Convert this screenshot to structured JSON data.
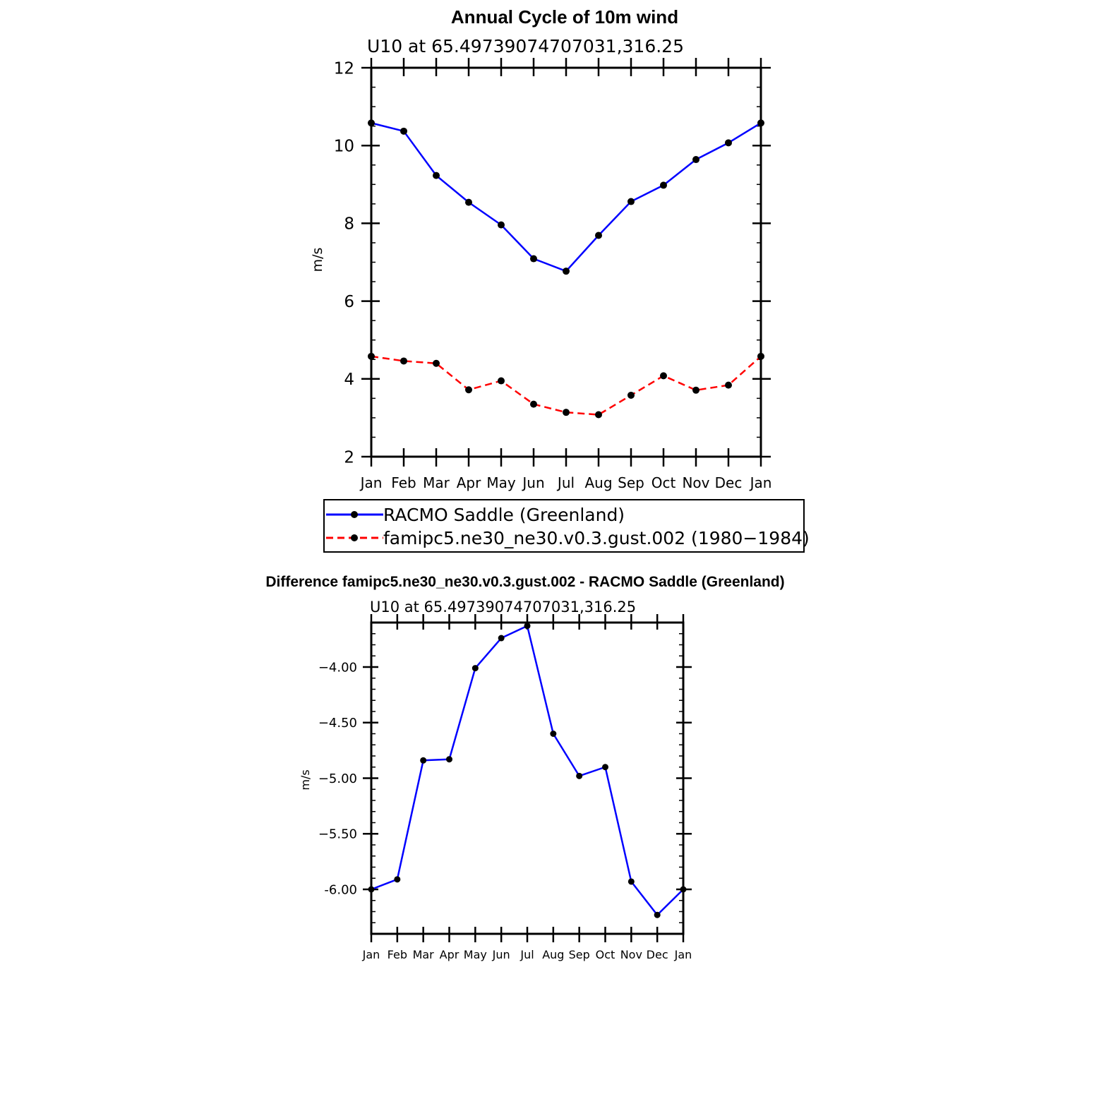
{
  "chart_data": [
    {
      "type": "line",
      "title": "Annual Cycle of 10m wind",
      "subtitle": "U10 at 65.49739074707031,316.25",
      "xlabel": "",
      "ylabel": "m/s",
      "categories": [
        "Jan",
        "Feb",
        "Mar",
        "Apr",
        "May",
        "Jun",
        "Jul",
        "Aug",
        "Sep",
        "Oct",
        "Nov",
        "Dec",
        "Jan"
      ],
      "ylim": [
        2,
        12
      ],
      "yticks": [
        2,
        4,
        6,
        8,
        10,
        12
      ],
      "ytick_labels": [
        "2",
        "4",
        "6",
        "8",
        "10",
        "12"
      ],
      "grid": false,
      "legend_position": "bottom",
      "series": [
        {
          "name": "RACMO Saddle (Greenland)",
          "color": "#0000ff",
          "dash": "solid",
          "values": [
            10.58,
            10.37,
            9.23,
            8.54,
            7.96,
            7.09,
            6.77,
            7.69,
            8.56,
            8.98,
            9.64,
            10.07,
            10.58
          ]
        },
        {
          "name": "famipc5.ne30_ne30.v0.3.gust.002 (1980−1984)",
          "color": "#ff0000",
          "dash": "dashed",
          "values": [
            4.58,
            4.46,
            4.4,
            3.72,
            3.95,
            3.35,
            3.14,
            3.08,
            3.58,
            4.08,
            3.71,
            3.84,
            4.58
          ]
        }
      ]
    },
    {
      "type": "line",
      "title": "Difference famipc5.ne30_ne30.v0.3.gust.002 - RACMO Saddle (Greenland)",
      "subtitle": "U10 at 65.49739074707031,316.25",
      "xlabel": "",
      "ylabel": "m/s",
      "categories": [
        "Jan",
        "Feb",
        "Mar",
        "Apr",
        "May",
        "Jun",
        "Jul",
        "Aug",
        "Sep",
        "Oct",
        "Nov",
        "Dec",
        "Jan"
      ],
      "ylim": [
        -6.4,
        -3.6
      ],
      "yticks": [
        -6.0,
        -5.5,
        -5.0,
        -4.5,
        -4.0
      ],
      "ytick_labels": [
        "-6.00",
        "−5.50",
        "−5.00",
        "−4.50",
        "−4.00"
      ],
      "grid": false,
      "series": [
        {
          "name": "Difference",
          "color": "#0000ff",
          "dash": "solid",
          "values": [
            -6.0,
            -5.91,
            -4.84,
            -4.83,
            -4.01,
            -3.74,
            -3.63,
            -4.6,
            -4.98,
            -4.9,
            -5.93,
            -6.23,
            -6.0
          ]
        }
      ]
    }
  ]
}
